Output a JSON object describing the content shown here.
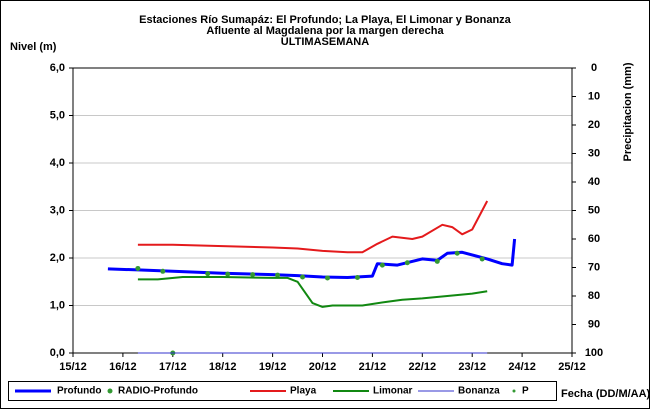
{
  "chart_data": {
    "type": "line",
    "title": [
      "Estaciones Río Sumapáz: El Profundo; La Playa, El Limonar y Bonanza",
      "Afluente al Magdalena por la margen derecha",
      "ULTIMASEMANA"
    ],
    "ylabel": "Nivel (m)",
    "y2label": "Precipitacion (mm)",
    "xlabel": "Fecha (DD/M/AA)",
    "xlim": [
      15,
      25
    ],
    "xticks": [
      {
        "value": 15,
        "label": "15/12"
      },
      {
        "value": 16,
        "label": "16/12"
      },
      {
        "value": 17,
        "label": "17/12"
      },
      {
        "value": 18,
        "label": "18/12"
      },
      {
        "value": 19,
        "label": "19/12"
      },
      {
        "value": 20,
        "label": "20/12"
      },
      {
        "value": 21,
        "label": "21/12"
      },
      {
        "value": 22,
        "label": "22/12"
      },
      {
        "value": 23,
        "label": "23/12"
      },
      {
        "value": 24,
        "label": "24/12"
      },
      {
        "value": 25,
        "label": "25/12"
      }
    ],
    "ylim": [
      0,
      6
    ],
    "yticks": [
      {
        "value": 0,
        "label": "0,0"
      },
      {
        "value": 1,
        "label": "1,0"
      },
      {
        "value": 2,
        "label": "2,0"
      },
      {
        "value": 3,
        "label": "3,0"
      },
      {
        "value": 4,
        "label": "4,0"
      },
      {
        "value": 5,
        "label": "5,0"
      },
      {
        "value": 6,
        "label": "6,0"
      }
    ],
    "y2lim": [
      100,
      0
    ],
    "y2ticks": [
      0,
      10,
      20,
      30,
      40,
      50,
      60,
      70,
      80,
      90,
      100
    ],
    "grid": true,
    "legend": "bottom",
    "series": [
      {
        "name": "Profundo",
        "color": "#0000ff",
        "style": "line",
        "width": 3,
        "x": [
          15.7,
          16.3,
          17,
          18,
          19,
          19.5,
          20,
          20.5,
          21,
          21.1,
          21.5,
          22,
          22.3,
          22.5,
          22.8,
          23.3,
          23.6,
          23.8,
          23.85
        ],
        "values": [
          1.77,
          1.75,
          1.72,
          1.68,
          1.65,
          1.63,
          1.6,
          1.59,
          1.62,
          1.88,
          1.85,
          1.98,
          1.95,
          2.1,
          2.12,
          1.98,
          1.88,
          1.85,
          2.4
        ]
      },
      {
        "name": "RADIO-Profundo",
        "color": "#339933",
        "style": "dots",
        "width": 2.5,
        "x": [
          16.3,
          16.8,
          17,
          17.7,
          18.1,
          18.6,
          19.1,
          19.6,
          20.1,
          20.7,
          21.2,
          21.7,
          22.3,
          22.7,
          23.2
        ],
        "values": [
          1.78,
          1.72,
          0,
          1.67,
          1.66,
          1.65,
          1.64,
          1.6,
          1.58,
          1.59,
          1.85,
          1.9,
          1.93,
          2.1,
          1.98
        ]
      },
      {
        "name": "Playa",
        "color": "#e41a1c",
        "style": "line",
        "width": 2,
        "x": [
          16.3,
          17,
          18,
          19,
          19.5,
          20,
          20.5,
          20.8,
          21.1,
          21.4,
          21.8,
          22,
          22.4,
          22.6,
          22.8,
          23,
          23.3
        ],
        "values": [
          2.28,
          2.28,
          2.25,
          2.22,
          2.2,
          2.15,
          2.12,
          2.12,
          2.3,
          2.45,
          2.4,
          2.45,
          2.7,
          2.65,
          2.5,
          2.6,
          3.2
        ]
      },
      {
        "name": "Limonar",
        "color": "#118811",
        "style": "line",
        "width": 2,
        "x": [
          16.3,
          16.7,
          17.2,
          18,
          19,
          19.3,
          19.5,
          19.8,
          20,
          20.2,
          20.8,
          21.3,
          21.6,
          22,
          22.5,
          23,
          23.3
        ],
        "values": [
          1.55,
          1.55,
          1.6,
          1.6,
          1.58,
          1.58,
          1.5,
          1.05,
          0.97,
          1.0,
          1.0,
          1.08,
          1.12,
          1.15,
          1.2,
          1.25,
          1.3
        ]
      },
      {
        "name": "Bonanza",
        "color": "#3333cc",
        "style": "line",
        "width": 1,
        "x": [
          16.3,
          23.3
        ],
        "values": [
          0,
          0
        ]
      },
      {
        "name": "P",
        "color": "#339933",
        "style": "dots",
        "width": 1.5,
        "axis": "y2",
        "x": [],
        "values": []
      }
    ]
  }
}
